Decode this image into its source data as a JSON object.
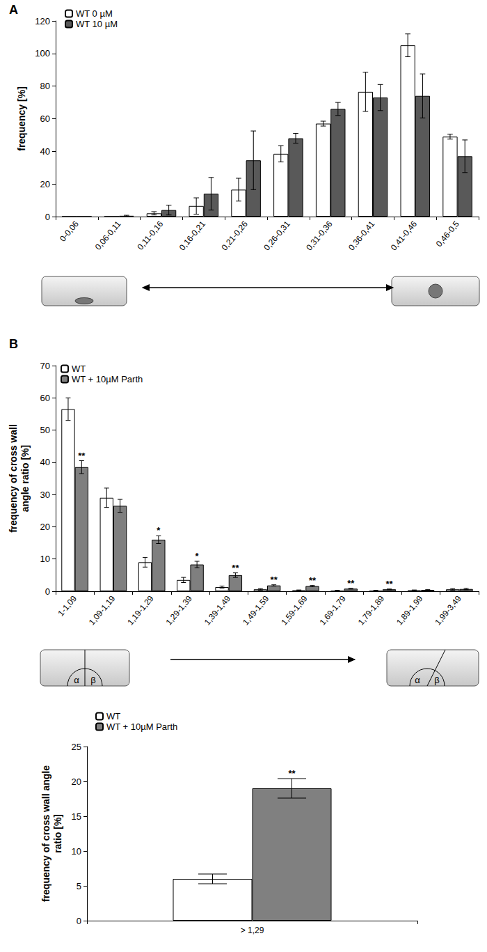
{
  "chart_data": [
    {
      "type": "bar",
      "title": "A",
      "y_label": "frequency [%]",
      "categories": [
        "0-0,06",
        "0,06-0,11",
        "0,11-0,16",
        "0,16-0,21",
        "0,21-0,26",
        "0,26-0,31",
        "0,31-0,36",
        "0,36-0,41",
        "0,41-0,46",
        "0,46-0,5"
      ],
      "series": [
        {
          "name": "WT 0 µM",
          "color": "#ffffff",
          "values": [
            0,
            0,
            2,
            6.5,
            16.5,
            38.5,
            57,
            76.5,
            105,
            49
          ],
          "errors": [
            0,
            0,
            1,
            5,
            7,
            5,
            1.5,
            12,
            7,
            1.5
          ]
        },
        {
          "name": "WT 10 µM",
          "color": "#595959",
          "values": [
            0,
            0.5,
            4,
            14,
            34.5,
            48,
            66,
            73,
            74,
            37
          ],
          "errors": [
            0,
            0.3,
            3,
            10,
            18,
            3,
            4,
            8,
            13.5,
            10
          ]
        }
      ],
      "ylim": [
        0,
        120
      ],
      "yticks": [
        0,
        20,
        40,
        60,
        80,
        100,
        120
      ],
      "grid": false,
      "legend": "top-left"
    },
    {
      "type": "bar",
      "title": "B",
      "y_label": "frequency of cross wall\nangle ratio [%]",
      "categories": [
        "1-1,09",
        "1,09-1,19",
        "1,19-1,29",
        "1,29-1,39",
        "1,39-1,49",
        "1,49-1,59",
        "1,59-1,69",
        "1,69-1,79",
        "1,79-1,89",
        "1,89-1,99",
        "1,99-3,49"
      ],
      "series": [
        {
          "name": "WT",
          "color": "#ffffff",
          "values": [
            56.5,
            29,
            9,
            3.5,
            1.3,
            0.6,
            0.3,
            0.2,
            0.2,
            0.3,
            0.6
          ],
          "errors": [
            3.5,
            3,
            1.5,
            0.8,
            0.3,
            0.2,
            0.1,
            0.1,
            0.1,
            0.1,
            0.2
          ],
          "annotations": [
            null,
            null,
            null,
            null,
            null,
            null,
            null,
            null,
            null,
            null,
            null
          ]
        },
        {
          "name": "WT + 10µM Parth",
          "color": "#7f7f7f",
          "values": [
            38.5,
            26.5,
            16,
            8.3,
            5,
            1.8,
            1.6,
            0.8,
            0.6,
            0.4,
            0.7
          ],
          "errors": [
            2,
            2,
            1.2,
            1,
            0.7,
            0.2,
            0.2,
            0.1,
            0.1,
            0.1,
            0.2
          ],
          "annotations": [
            "**",
            null,
            "*",
            "*",
            "**",
            "**",
            "**",
            "**",
            "**",
            null,
            null
          ]
        }
      ],
      "ylim": [
        0,
        70
      ],
      "yticks": [
        0,
        10,
        20,
        30,
        40,
        50,
        60,
        70
      ],
      "grid": false,
      "legend": "top-left"
    },
    {
      "type": "bar",
      "y_label": "frequency of cross wall angle\nratio [%]",
      "categories": [
        "> 1,29"
      ],
      "series": [
        {
          "name": "WT",
          "color": "#ffffff",
          "values": [
            6
          ],
          "errors": [
            0.7
          ],
          "annotations": [
            null
          ]
        },
        {
          "name": "WT + 10µM Parth",
          "color": "#808080",
          "values": [
            19
          ],
          "errors": [
            1.4
          ],
          "annotations": [
            "**"
          ]
        }
      ],
      "ylim": [
        0,
        25
      ],
      "yticks": [
        0,
        5,
        10,
        15,
        20,
        25
      ],
      "grid": false,
      "legend": "top-left"
    }
  ],
  "diagram_B": {
    "angle_labels": [
      "α",
      "β"
    ]
  }
}
